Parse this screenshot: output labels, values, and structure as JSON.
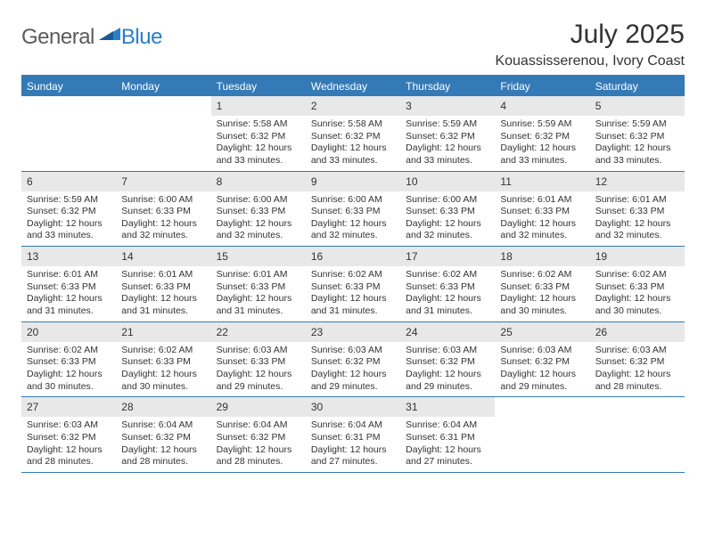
{
  "logo": {
    "text1": "General",
    "text2": "Blue"
  },
  "title": "July 2025",
  "subtitle": "Kouassisserenou, Ivory Coast",
  "colors": {
    "header_bg": "#347ab7",
    "header_text": "#ffffff",
    "daynum_bg": "#e8e8e8",
    "border": "#347ab7",
    "logo_gray": "#5b5b5b",
    "logo_blue": "#2a7fc9",
    "text": "#333333"
  },
  "weekdays": [
    "Sunday",
    "Monday",
    "Tuesday",
    "Wednesday",
    "Thursday",
    "Friday",
    "Saturday"
  ],
  "labels": {
    "sunrise": "Sunrise:",
    "sunset": "Sunset:",
    "daylight": "Daylight:"
  },
  "weeks": [
    [
      null,
      null,
      {
        "n": 1,
        "sunrise": "5:58 AM",
        "sunset": "6:32 PM",
        "daylight": "12 hours and 33 minutes."
      },
      {
        "n": 2,
        "sunrise": "5:58 AM",
        "sunset": "6:32 PM",
        "daylight": "12 hours and 33 minutes."
      },
      {
        "n": 3,
        "sunrise": "5:59 AM",
        "sunset": "6:32 PM",
        "daylight": "12 hours and 33 minutes."
      },
      {
        "n": 4,
        "sunrise": "5:59 AM",
        "sunset": "6:32 PM",
        "daylight": "12 hours and 33 minutes."
      },
      {
        "n": 5,
        "sunrise": "5:59 AM",
        "sunset": "6:32 PM",
        "daylight": "12 hours and 33 minutes."
      }
    ],
    [
      {
        "n": 6,
        "sunrise": "5:59 AM",
        "sunset": "6:32 PM",
        "daylight": "12 hours and 33 minutes."
      },
      {
        "n": 7,
        "sunrise": "6:00 AM",
        "sunset": "6:33 PM",
        "daylight": "12 hours and 32 minutes."
      },
      {
        "n": 8,
        "sunrise": "6:00 AM",
        "sunset": "6:33 PM",
        "daylight": "12 hours and 32 minutes."
      },
      {
        "n": 9,
        "sunrise": "6:00 AM",
        "sunset": "6:33 PM",
        "daylight": "12 hours and 32 minutes."
      },
      {
        "n": 10,
        "sunrise": "6:00 AM",
        "sunset": "6:33 PM",
        "daylight": "12 hours and 32 minutes."
      },
      {
        "n": 11,
        "sunrise": "6:01 AM",
        "sunset": "6:33 PM",
        "daylight": "12 hours and 32 minutes."
      },
      {
        "n": 12,
        "sunrise": "6:01 AM",
        "sunset": "6:33 PM",
        "daylight": "12 hours and 32 minutes."
      }
    ],
    [
      {
        "n": 13,
        "sunrise": "6:01 AM",
        "sunset": "6:33 PM",
        "daylight": "12 hours and 31 minutes."
      },
      {
        "n": 14,
        "sunrise": "6:01 AM",
        "sunset": "6:33 PM",
        "daylight": "12 hours and 31 minutes."
      },
      {
        "n": 15,
        "sunrise": "6:01 AM",
        "sunset": "6:33 PM",
        "daylight": "12 hours and 31 minutes."
      },
      {
        "n": 16,
        "sunrise": "6:02 AM",
        "sunset": "6:33 PM",
        "daylight": "12 hours and 31 minutes."
      },
      {
        "n": 17,
        "sunrise": "6:02 AM",
        "sunset": "6:33 PM",
        "daylight": "12 hours and 31 minutes."
      },
      {
        "n": 18,
        "sunrise": "6:02 AM",
        "sunset": "6:33 PM",
        "daylight": "12 hours and 30 minutes."
      },
      {
        "n": 19,
        "sunrise": "6:02 AM",
        "sunset": "6:33 PM",
        "daylight": "12 hours and 30 minutes."
      }
    ],
    [
      {
        "n": 20,
        "sunrise": "6:02 AM",
        "sunset": "6:33 PM",
        "daylight": "12 hours and 30 minutes."
      },
      {
        "n": 21,
        "sunrise": "6:02 AM",
        "sunset": "6:33 PM",
        "daylight": "12 hours and 30 minutes."
      },
      {
        "n": 22,
        "sunrise": "6:03 AM",
        "sunset": "6:33 PM",
        "daylight": "12 hours and 29 minutes."
      },
      {
        "n": 23,
        "sunrise": "6:03 AM",
        "sunset": "6:32 PM",
        "daylight": "12 hours and 29 minutes."
      },
      {
        "n": 24,
        "sunrise": "6:03 AM",
        "sunset": "6:32 PM",
        "daylight": "12 hours and 29 minutes."
      },
      {
        "n": 25,
        "sunrise": "6:03 AM",
        "sunset": "6:32 PM",
        "daylight": "12 hours and 29 minutes."
      },
      {
        "n": 26,
        "sunrise": "6:03 AM",
        "sunset": "6:32 PM",
        "daylight": "12 hours and 28 minutes."
      }
    ],
    [
      {
        "n": 27,
        "sunrise": "6:03 AM",
        "sunset": "6:32 PM",
        "daylight": "12 hours and 28 minutes."
      },
      {
        "n": 28,
        "sunrise": "6:04 AM",
        "sunset": "6:32 PM",
        "daylight": "12 hours and 28 minutes."
      },
      {
        "n": 29,
        "sunrise": "6:04 AM",
        "sunset": "6:32 PM",
        "daylight": "12 hours and 28 minutes."
      },
      {
        "n": 30,
        "sunrise": "6:04 AM",
        "sunset": "6:31 PM",
        "daylight": "12 hours and 27 minutes."
      },
      {
        "n": 31,
        "sunrise": "6:04 AM",
        "sunset": "6:31 PM",
        "daylight": "12 hours and 27 minutes."
      },
      null,
      null
    ]
  ]
}
